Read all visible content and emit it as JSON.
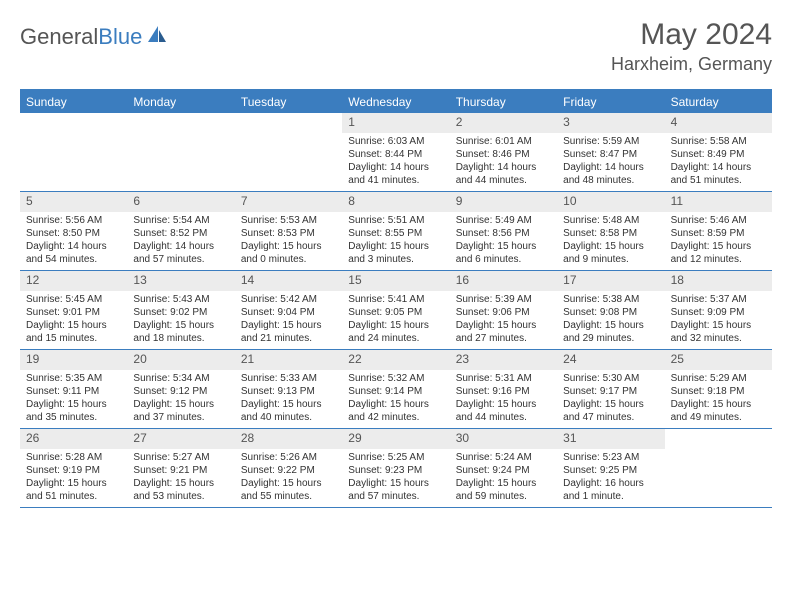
{
  "brand": {
    "part1": "General",
    "part2": "Blue"
  },
  "title": "May 2024",
  "location": "Harxheim, Germany",
  "colors": {
    "accent": "#3b7dbf",
    "bg": "#ffffff",
    "daynum_bg": "#ececec",
    "text": "#333333"
  },
  "dayNames": [
    "Sunday",
    "Monday",
    "Tuesday",
    "Wednesday",
    "Thursday",
    "Friday",
    "Saturday"
  ],
  "weeks": [
    [
      {
        "day": "",
        "sunrise": "",
        "sunset": "",
        "daylight": ""
      },
      {
        "day": "",
        "sunrise": "",
        "sunset": "",
        "daylight": ""
      },
      {
        "day": "",
        "sunrise": "",
        "sunset": "",
        "daylight": ""
      },
      {
        "day": "1",
        "sunrise": "Sunrise: 6:03 AM",
        "sunset": "Sunset: 8:44 PM",
        "daylight": "Daylight: 14 hours and 41 minutes."
      },
      {
        "day": "2",
        "sunrise": "Sunrise: 6:01 AM",
        "sunset": "Sunset: 8:46 PM",
        "daylight": "Daylight: 14 hours and 44 minutes."
      },
      {
        "day": "3",
        "sunrise": "Sunrise: 5:59 AM",
        "sunset": "Sunset: 8:47 PM",
        "daylight": "Daylight: 14 hours and 48 minutes."
      },
      {
        "day": "4",
        "sunrise": "Sunrise: 5:58 AM",
        "sunset": "Sunset: 8:49 PM",
        "daylight": "Daylight: 14 hours and 51 minutes."
      }
    ],
    [
      {
        "day": "5",
        "sunrise": "Sunrise: 5:56 AM",
        "sunset": "Sunset: 8:50 PM",
        "daylight": "Daylight: 14 hours and 54 minutes."
      },
      {
        "day": "6",
        "sunrise": "Sunrise: 5:54 AM",
        "sunset": "Sunset: 8:52 PM",
        "daylight": "Daylight: 14 hours and 57 minutes."
      },
      {
        "day": "7",
        "sunrise": "Sunrise: 5:53 AM",
        "sunset": "Sunset: 8:53 PM",
        "daylight": "Daylight: 15 hours and 0 minutes."
      },
      {
        "day": "8",
        "sunrise": "Sunrise: 5:51 AM",
        "sunset": "Sunset: 8:55 PM",
        "daylight": "Daylight: 15 hours and 3 minutes."
      },
      {
        "day": "9",
        "sunrise": "Sunrise: 5:49 AM",
        "sunset": "Sunset: 8:56 PM",
        "daylight": "Daylight: 15 hours and 6 minutes."
      },
      {
        "day": "10",
        "sunrise": "Sunrise: 5:48 AM",
        "sunset": "Sunset: 8:58 PM",
        "daylight": "Daylight: 15 hours and 9 minutes."
      },
      {
        "day": "11",
        "sunrise": "Sunrise: 5:46 AM",
        "sunset": "Sunset: 8:59 PM",
        "daylight": "Daylight: 15 hours and 12 minutes."
      }
    ],
    [
      {
        "day": "12",
        "sunrise": "Sunrise: 5:45 AM",
        "sunset": "Sunset: 9:01 PM",
        "daylight": "Daylight: 15 hours and 15 minutes."
      },
      {
        "day": "13",
        "sunrise": "Sunrise: 5:43 AM",
        "sunset": "Sunset: 9:02 PM",
        "daylight": "Daylight: 15 hours and 18 minutes."
      },
      {
        "day": "14",
        "sunrise": "Sunrise: 5:42 AM",
        "sunset": "Sunset: 9:04 PM",
        "daylight": "Daylight: 15 hours and 21 minutes."
      },
      {
        "day": "15",
        "sunrise": "Sunrise: 5:41 AM",
        "sunset": "Sunset: 9:05 PM",
        "daylight": "Daylight: 15 hours and 24 minutes."
      },
      {
        "day": "16",
        "sunrise": "Sunrise: 5:39 AM",
        "sunset": "Sunset: 9:06 PM",
        "daylight": "Daylight: 15 hours and 27 minutes."
      },
      {
        "day": "17",
        "sunrise": "Sunrise: 5:38 AM",
        "sunset": "Sunset: 9:08 PM",
        "daylight": "Daylight: 15 hours and 29 minutes."
      },
      {
        "day": "18",
        "sunrise": "Sunrise: 5:37 AM",
        "sunset": "Sunset: 9:09 PM",
        "daylight": "Daylight: 15 hours and 32 minutes."
      }
    ],
    [
      {
        "day": "19",
        "sunrise": "Sunrise: 5:35 AM",
        "sunset": "Sunset: 9:11 PM",
        "daylight": "Daylight: 15 hours and 35 minutes."
      },
      {
        "day": "20",
        "sunrise": "Sunrise: 5:34 AM",
        "sunset": "Sunset: 9:12 PM",
        "daylight": "Daylight: 15 hours and 37 minutes."
      },
      {
        "day": "21",
        "sunrise": "Sunrise: 5:33 AM",
        "sunset": "Sunset: 9:13 PM",
        "daylight": "Daylight: 15 hours and 40 minutes."
      },
      {
        "day": "22",
        "sunrise": "Sunrise: 5:32 AM",
        "sunset": "Sunset: 9:14 PM",
        "daylight": "Daylight: 15 hours and 42 minutes."
      },
      {
        "day": "23",
        "sunrise": "Sunrise: 5:31 AM",
        "sunset": "Sunset: 9:16 PM",
        "daylight": "Daylight: 15 hours and 44 minutes."
      },
      {
        "day": "24",
        "sunrise": "Sunrise: 5:30 AM",
        "sunset": "Sunset: 9:17 PM",
        "daylight": "Daylight: 15 hours and 47 minutes."
      },
      {
        "day": "25",
        "sunrise": "Sunrise: 5:29 AM",
        "sunset": "Sunset: 9:18 PM",
        "daylight": "Daylight: 15 hours and 49 minutes."
      }
    ],
    [
      {
        "day": "26",
        "sunrise": "Sunrise: 5:28 AM",
        "sunset": "Sunset: 9:19 PM",
        "daylight": "Daylight: 15 hours and 51 minutes."
      },
      {
        "day": "27",
        "sunrise": "Sunrise: 5:27 AM",
        "sunset": "Sunset: 9:21 PM",
        "daylight": "Daylight: 15 hours and 53 minutes."
      },
      {
        "day": "28",
        "sunrise": "Sunrise: 5:26 AM",
        "sunset": "Sunset: 9:22 PM",
        "daylight": "Daylight: 15 hours and 55 minutes."
      },
      {
        "day": "29",
        "sunrise": "Sunrise: 5:25 AM",
        "sunset": "Sunset: 9:23 PM",
        "daylight": "Daylight: 15 hours and 57 minutes."
      },
      {
        "day": "30",
        "sunrise": "Sunrise: 5:24 AM",
        "sunset": "Sunset: 9:24 PM",
        "daylight": "Daylight: 15 hours and 59 minutes."
      },
      {
        "day": "31",
        "sunrise": "Sunrise: 5:23 AM",
        "sunset": "Sunset: 9:25 PM",
        "daylight": "Daylight: 16 hours and 1 minute."
      },
      {
        "day": "",
        "sunrise": "",
        "sunset": "",
        "daylight": ""
      }
    ]
  ]
}
